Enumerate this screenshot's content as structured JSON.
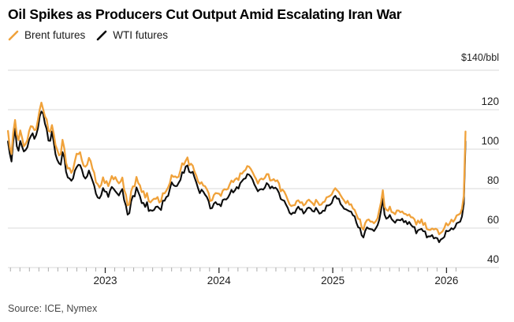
{
  "chart_data": {
    "type": "line",
    "title": "Oil Spikes as Producers Cut Output Amid Escalating Iran War",
    "source": "Source: ICE, Nymex",
    "y_axis": {
      "unit_label": "$140/bbl",
      "tick_labels": [
        120,
        100,
        80,
        60,
        40
      ],
      "gridline_values": [
        140,
        120,
        100,
        80,
        60,
        40
      ],
      "range": [
        40,
        140
      ]
    },
    "x_axis": {
      "year_labels": [
        "2023",
        "2024",
        "2025",
        "2026"
      ],
      "minor_tick_interval": "month",
      "range_years": [
        2022.145,
        2026.167
      ]
    },
    "legend_position": "top-left",
    "grid": true,
    "colors": {
      "brent": "#F0A23B",
      "wti": "#0d0d0d",
      "gridline": "#d8d8d8",
      "tick_minor": "#ababab",
      "tick_major": "#2b2b2b",
      "axis_label": "#1f1f1f"
    },
    "series": [
      {
        "name": "Brent futures",
        "color": "#F0A23B",
        "points": [
          [
            2022.145,
            108
          ],
          [
            2022.17,
            95
          ],
          [
            2022.2,
            117
          ],
          [
            2022.23,
            104
          ],
          [
            2022.26,
            111
          ],
          [
            2022.29,
            101
          ],
          [
            2022.32,
            104
          ],
          [
            2022.35,
            113
          ],
          [
            2022.38,
            108
          ],
          [
            2022.42,
            119
          ],
          [
            2022.45,
            123
          ],
          [
            2022.48,
            116
          ],
          [
            2022.51,
            107
          ],
          [
            2022.535,
            113
          ],
          [
            2022.56,
            100
          ],
          [
            2022.6,
            97
          ],
          [
            2022.63,
            104
          ],
          [
            2022.66,
            93
          ],
          [
            2022.7,
            89
          ],
          [
            2022.74,
            95
          ],
          [
            2022.78,
            98
          ],
          [
            2022.82,
            91
          ],
          [
            2022.86,
            95
          ],
          [
            2022.9,
            87
          ],
          [
            2022.94,
            81
          ],
          [
            2022.98,
            84
          ],
          [
            2023.03,
            82
          ],
          [
            2023.07,
            86
          ],
          [
            2023.11,
            83
          ],
          [
            2023.15,
            86
          ],
          [
            2023.2,
            71
          ],
          [
            2023.24,
            80
          ],
          [
            2023.28,
            85
          ],
          [
            2023.32,
            78
          ],
          [
            2023.37,
            76
          ],
          [
            2023.41,
            73
          ],
          [
            2023.45,
            76
          ],
          [
            2023.49,
            74
          ],
          [
            2023.54,
            80
          ],
          [
            2023.59,
            86
          ],
          [
            2023.63,
            84
          ],
          [
            2023.67,
            91
          ],
          [
            2023.71,
            95
          ],
          [
            2023.75,
            92
          ],
          [
            2023.79,
            89
          ],
          [
            2023.83,
            81
          ],
          [
            2023.87,
            83
          ],
          [
            2023.9,
            78
          ],
          [
            2023.93,
            74
          ],
          [
            2023.97,
            78
          ],
          [
            2024.01,
            76
          ],
          [
            2024.05,
            79
          ],
          [
            2024.09,
            82
          ],
          [
            2024.13,
            84
          ],
          [
            2024.18,
            86
          ],
          [
            2024.22,
            89
          ],
          [
            2024.26,
            91
          ],
          [
            2024.3,
            88
          ],
          [
            2024.34,
            82
          ],
          [
            2024.38,
            85
          ],
          [
            2024.42,
            87
          ],
          [
            2024.46,
            85
          ],
          [
            2024.5,
            84
          ],
          [
            2024.54,
            80
          ],
          [
            2024.58,
            77
          ],
          [
            2024.62,
            72
          ],
          [
            2024.66,
            70
          ],
          [
            2024.7,
            75
          ],
          [
            2024.74,
            72
          ],
          [
            2024.78,
            75
          ],
          [
            2024.82,
            72
          ],
          [
            2024.86,
            74
          ],
          [
            2024.9,
            72
          ],
          [
            2024.94,
            74
          ],
          [
            2024.98,
            76
          ],
          [
            2025.03,
            81
          ],
          [
            2025.07,
            77
          ],
          [
            2025.11,
            74
          ],
          [
            2025.15,
            72
          ],
          [
            2025.19,
            70
          ],
          [
            2025.23,
            64
          ],
          [
            2025.27,
            60
          ],
          [
            2025.31,
            65
          ],
          [
            2025.35,
            62
          ],
          [
            2025.4,
            65
          ],
          [
            2025.44,
            78
          ],
          [
            2025.46,
            68
          ],
          [
            2025.5,
            70
          ],
          [
            2025.54,
            68
          ],
          [
            2025.58,
            68
          ],
          [
            2025.62,
            68
          ],
          [
            2025.66,
            66
          ],
          [
            2025.7,
            65
          ],
          [
            2025.74,
            62
          ],
          [
            2025.78,
            64
          ],
          [
            2025.82,
            61
          ],
          [
            2025.86,
            60
          ],
          [
            2025.91,
            59
          ],
          [
            2025.95,
            57.5
          ],
          [
            2025.99,
            61
          ],
          [
            2026.02,
            63
          ],
          [
            2026.06,
            64
          ],
          [
            2026.1,
            66
          ],
          [
            2026.13,
            68
          ],
          [
            2026.15,
            74
          ],
          [
            2026.16,
            88
          ],
          [
            2026.167,
            109
          ]
        ]
      },
      {
        "name": "WTI futures",
        "color": "#0d0d0d",
        "points": [
          [
            2022.145,
            104
          ],
          [
            2022.17,
            91
          ],
          [
            2022.2,
            113
          ],
          [
            2022.23,
            99
          ],
          [
            2022.26,
            106
          ],
          [
            2022.29,
            97
          ],
          [
            2022.32,
            100
          ],
          [
            2022.35,
            109
          ],
          [
            2022.38,
            104
          ],
          [
            2022.42,
            116
          ],
          [
            2022.45,
            120
          ],
          [
            2022.48,
            112
          ],
          [
            2022.51,
            103
          ],
          [
            2022.535,
            109
          ],
          [
            2022.56,
            96
          ],
          [
            2022.6,
            92
          ],
          [
            2022.63,
            99
          ],
          [
            2022.66,
            88
          ],
          [
            2022.7,
            84
          ],
          [
            2022.74,
            89
          ],
          [
            2022.78,
            92
          ],
          [
            2022.82,
            85
          ],
          [
            2022.86,
            89
          ],
          [
            2022.9,
            81
          ],
          [
            2022.94,
            75
          ],
          [
            2022.98,
            79
          ],
          [
            2023.03,
            77
          ],
          [
            2023.07,
            80
          ],
          [
            2023.11,
            77
          ],
          [
            2023.15,
            80
          ],
          [
            2023.2,
            66
          ],
          [
            2023.24,
            75
          ],
          [
            2023.28,
            81
          ],
          [
            2023.32,
            73
          ],
          [
            2023.37,
            71
          ],
          [
            2023.41,
            68
          ],
          [
            2023.45,
            71
          ],
          [
            2023.49,
            70
          ],
          [
            2023.54,
            76
          ],
          [
            2023.59,
            82
          ],
          [
            2023.63,
            80
          ],
          [
            2023.67,
            87
          ],
          [
            2023.71,
            91
          ],
          [
            2023.75,
            88
          ],
          [
            2023.79,
            86
          ],
          [
            2023.83,
            77
          ],
          [
            2023.87,
            79
          ],
          [
            2023.9,
            74
          ],
          [
            2023.93,
            70
          ],
          [
            2023.97,
            73
          ],
          [
            2024.01,
            71
          ],
          [
            2024.05,
            74
          ],
          [
            2024.09,
            77
          ],
          [
            2024.13,
            79
          ],
          [
            2024.18,
            82
          ],
          [
            2024.22,
            85
          ],
          [
            2024.26,
            87
          ],
          [
            2024.3,
            84
          ],
          [
            2024.34,
            78
          ],
          [
            2024.38,
            80
          ],
          [
            2024.42,
            82
          ],
          [
            2024.46,
            81
          ],
          [
            2024.5,
            80
          ],
          [
            2024.54,
            76
          ],
          [
            2024.58,
            72
          ],
          [
            2024.62,
            68
          ],
          [
            2024.66,
            66
          ],
          [
            2024.7,
            71
          ],
          [
            2024.74,
            68
          ],
          [
            2024.78,
            71
          ],
          [
            2024.82,
            68
          ],
          [
            2024.86,
            70
          ],
          [
            2024.9,
            68
          ],
          [
            2024.94,
            70
          ],
          [
            2024.98,
            72
          ],
          [
            2025.03,
            77
          ],
          [
            2025.07,
            73
          ],
          [
            2025.11,
            70
          ],
          [
            2025.15,
            68
          ],
          [
            2025.19,
            66
          ],
          [
            2025.23,
            60
          ],
          [
            2025.27,
            56
          ],
          [
            2025.31,
            61
          ],
          [
            2025.35,
            58
          ],
          [
            2025.4,
            61
          ],
          [
            2025.44,
            74
          ],
          [
            2025.46,
            64
          ],
          [
            2025.5,
            66
          ],
          [
            2025.54,
            64
          ],
          [
            2025.58,
            64
          ],
          [
            2025.62,
            64
          ],
          [
            2025.66,
            62
          ],
          [
            2025.7,
            61
          ],
          [
            2025.74,
            58
          ],
          [
            2025.78,
            60
          ],
          [
            2025.82,
            57
          ],
          [
            2025.86,
            56
          ],
          [
            2025.91,
            55
          ],
          [
            2025.95,
            53.5
          ],
          [
            2025.99,
            57
          ],
          [
            2026.02,
            59
          ],
          [
            2026.06,
            60
          ],
          [
            2026.1,
            62
          ],
          [
            2026.13,
            64
          ],
          [
            2026.15,
            70
          ],
          [
            2026.16,
            84
          ],
          [
            2026.167,
            104
          ]
        ]
      }
    ],
    "noise": {
      "bands": [
        {
          "until": 2022.85,
          "amp": 2.3
        },
        {
          "until": 2023.75,
          "amp": 1.8
        },
        {
          "until": 2026.12,
          "amp": 1.4
        },
        {
          "until": 2100,
          "amp": 0.15
        }
      ],
      "wti_shared": 0.72,
      "wti_own": 0.5
    }
  }
}
